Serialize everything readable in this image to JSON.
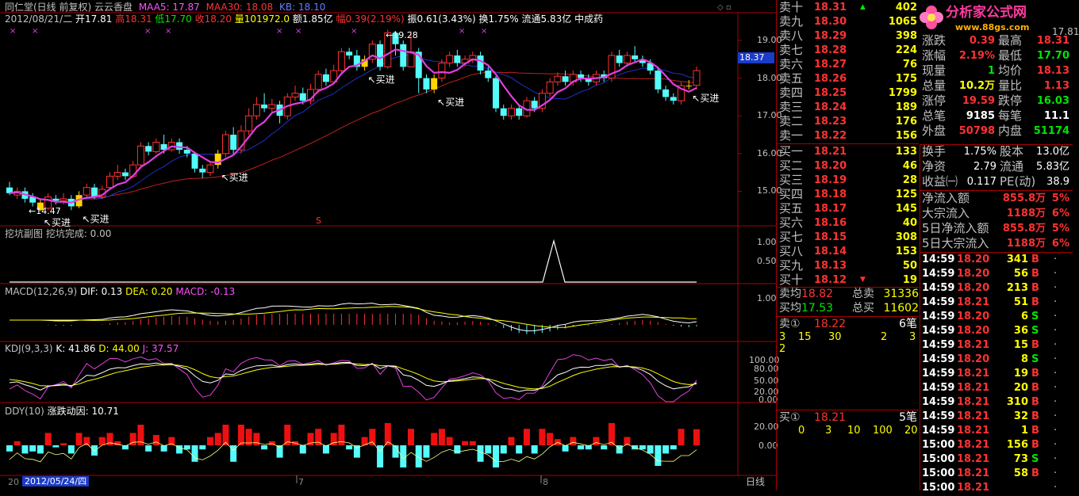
{
  "header": {
    "title": "同仁堂(日线 前复权) 云云香盘",
    "ma5_label": "MAA5: 17.87",
    "ma30_label": "MAA30: 18.08",
    "kb_label": "KB: 18.10",
    "date": "2012/08/21/二",
    "open": "开17.81",
    "high": "高18.31",
    "low": "低17.70",
    "close": "收18.20",
    "vol": "量101972.0",
    "amount": "额1.85亿",
    "change": "幅0.39(2.19%)",
    "amp": "振0.61(3.43%)",
    "turnover": "换1.75%",
    "float_cap": "流通5.83亿",
    "industry": "中成药"
  },
  "main_chart": {
    "price_ticks": [
      "19.00",
      "18.00",
      "17.00",
      "16.00",
      "15.00"
    ],
    "current_price_tag": "18.37",
    "high_mark": "19.28",
    "low_mark": "14.47",
    "buy_label": "买进",
    "s_mark": "S",
    "x_mark": "×",
    "candles": [
      [
        15.1,
        14.95,
        15.25,
        14.9
      ],
      [
        14.9,
        15.0,
        15.1,
        14.8
      ],
      [
        15.0,
        14.8,
        15.1,
        14.7
      ],
      [
        14.85,
        14.7,
        14.95,
        14.6
      ],
      [
        14.7,
        14.5,
        14.8,
        14.47
      ],
      [
        14.55,
        14.85,
        14.95,
        14.5
      ],
      [
        14.8,
        14.75,
        14.9,
        14.65
      ],
      [
        14.75,
        14.8,
        14.95,
        14.65
      ],
      [
        14.8,
        14.6,
        14.9,
        14.5
      ],
      [
        14.6,
        14.9,
        15.0,
        14.55
      ],
      [
        14.9,
        15.1,
        15.2,
        14.85
      ],
      [
        15.1,
        14.85,
        15.2,
        14.8
      ],
      [
        14.85,
        15.05,
        15.15,
        14.8
      ],
      [
        15.1,
        15.4,
        15.5,
        15.05
      ],
      [
        15.4,
        15.5,
        15.7,
        15.3
      ],
      [
        15.5,
        15.4,
        15.6,
        15.3
      ],
      [
        15.4,
        15.7,
        15.8,
        15.35
      ],
      [
        15.7,
        16.2,
        16.3,
        15.6
      ],
      [
        16.2,
        16.05,
        16.3,
        15.95
      ],
      [
        16.05,
        16.3,
        16.4,
        16.0
      ],
      [
        16.25,
        16.1,
        16.5,
        16.0
      ],
      [
        16.1,
        16.3,
        16.4,
        16.05
      ],
      [
        16.3,
        16.1,
        16.4,
        16.0
      ],
      [
        16.1,
        16.0,
        16.2,
        15.9
      ],
      [
        16.0,
        15.6,
        16.05,
        15.5
      ],
      [
        15.6,
        15.5,
        15.7,
        15.35
      ],
      [
        15.5,
        15.7,
        15.8,
        15.4
      ],
      [
        15.7,
        16.0,
        16.1,
        15.6
      ],
      [
        16.0,
        16.5,
        16.6,
        15.9
      ],
      [
        16.5,
        16.1,
        16.7,
        16.0
      ],
      [
        16.1,
        16.6,
        16.75,
        16.0
      ],
      [
        16.6,
        17.0,
        17.2,
        16.5
      ],
      [
        17.0,
        17.3,
        17.5,
        16.9
      ],
      [
        17.3,
        17.2,
        17.6,
        17.1
      ],
      [
        17.2,
        17.3,
        17.45,
        17.1
      ],
      [
        17.3,
        17.0,
        17.4,
        16.8
      ],
      [
        17.0,
        17.5,
        17.6,
        16.9
      ],
      [
        17.5,
        17.6,
        17.8,
        17.4
      ],
      [
        17.6,
        17.4,
        17.75,
        17.3
      ],
      [
        17.4,
        17.7,
        17.85,
        17.3
      ],
      [
        17.7,
        18.1,
        18.2,
        17.6
      ],
      [
        18.1,
        17.9,
        18.25,
        17.8
      ],
      [
        17.9,
        18.2,
        18.35,
        17.85
      ],
      [
        18.2,
        18.7,
        18.8,
        18.1
      ],
      [
        18.7,
        18.6,
        18.8,
        18.5
      ],
      [
        18.6,
        18.3,
        18.75,
        18.2
      ],
      [
        18.3,
        18.5,
        18.6,
        18.2
      ],
      [
        18.5,
        18.9,
        19.0,
        18.4
      ],
      [
        18.9,
        18.3,
        19.0,
        18.2
      ],
      [
        18.3,
        19.2,
        19.28,
        18.25
      ],
      [
        19.2,
        18.9,
        19.25,
        18.6
      ],
      [
        18.9,
        18.3,
        19.0,
        18.2
      ],
      [
        18.3,
        18.7,
        19.25,
        18.6
      ],
      [
        18.7,
        18.0,
        18.8,
        17.6
      ],
      [
        18.0,
        17.7,
        18.1,
        17.6
      ],
      [
        17.7,
        18.0,
        18.1,
        17.6
      ],
      [
        18.0,
        18.4,
        18.5,
        17.9
      ],
      [
        18.4,
        18.6,
        18.7,
        18.3
      ],
      [
        18.6,
        18.4,
        18.75,
        18.3
      ],
      [
        18.4,
        18.5,
        18.6,
        18.3
      ],
      [
        18.5,
        18.6,
        18.7,
        18.4
      ],
      [
        18.6,
        18.2,
        18.7,
        18.1
      ],
      [
        18.2,
        18.0,
        18.3,
        17.9
      ],
      [
        18.0,
        17.2,
        18.05,
        17.1
      ],
      [
        17.2,
        17.0,
        17.3,
        16.9
      ],
      [
        17.0,
        17.2,
        17.3,
        16.9
      ],
      [
        17.2,
        17.0,
        17.25,
        16.9
      ],
      [
        17.0,
        17.4,
        17.5,
        16.95
      ],
      [
        17.4,
        17.2,
        17.5,
        17.1
      ],
      [
        17.2,
        17.6,
        17.7,
        17.1
      ],
      [
        17.6,
        17.9,
        18.0,
        17.5
      ],
      [
        17.9,
        18.05,
        18.15,
        17.8
      ],
      [
        18.05,
        17.9,
        18.2,
        17.8
      ],
      [
        17.9,
        18.1,
        18.2,
        17.8
      ],
      [
        18.1,
        18.0,
        18.2,
        17.9
      ],
      [
        18.0,
        17.9,
        18.1,
        17.8
      ],
      [
        17.9,
        18.1,
        18.2,
        17.8
      ],
      [
        18.1,
        18.0,
        18.2,
        17.9
      ],
      [
        18.0,
        18.6,
        18.7,
        17.9
      ],
      [
        18.6,
        18.4,
        18.75,
        18.3
      ],
      [
        18.4,
        18.6,
        18.7,
        18.3
      ],
      [
        18.6,
        18.5,
        18.85,
        18.4
      ],
      [
        18.5,
        18.4,
        18.6,
        18.3
      ],
      [
        18.4,
        18.2,
        18.5,
        18.1
      ],
      [
        18.2,
        17.7,
        18.3,
        17.6
      ],
      [
        17.7,
        17.5,
        17.8,
        17.4
      ],
      [
        17.5,
        17.4,
        17.6,
        17.3
      ],
      [
        17.4,
        17.8,
        17.9,
        17.3
      ],
      [
        17.8,
        17.8,
        17.95,
        17.7
      ],
      [
        17.81,
        18.2,
        18.31,
        17.7
      ]
    ],
    "buy_indices": [
      4,
      9,
      27,
      46,
      55,
      88
    ]
  },
  "sub1": {
    "title": "挖坑副图 挖坑完成: 0.00",
    "ticks": [
      "1.00",
      "0.50"
    ]
  },
  "sub2": {
    "title": "MACD(12,26,9)",
    "dif": "DIF: 0.13",
    "dea": "DEA: 0.20",
    "macd": "MACD: -0.13",
    "ticks": [
      "1.00"
    ]
  },
  "sub3": {
    "title": "KDJ(9,3,3)",
    "k": "K: 41.86",
    "d": "D: 44.00",
    "j": "J: 37.57",
    "ticks": [
      "100.00",
      "80.00",
      "50.00",
      "20.00",
      "0.00"
    ]
  },
  "sub4": {
    "title": "DDY(10)",
    "value": "涨跌动因: 10.71",
    "ticks": [
      "20.00",
      "0.00"
    ]
  },
  "xaxis": {
    "label_left": "20",
    "date_hl": "2012/05/24/四",
    "m7": "7",
    "m8": "8",
    "period_tab": "日线"
  },
  "right_panel": {
    "logo_text": "分析家公式网",
    "logo_url": "www.88gs.com",
    "sells": [
      {
        "label": "卖十",
        "price": "18.31",
        "vol": "402"
      },
      {
        "label": "卖九",
        "price": "18.30",
        "vol": "1065"
      },
      {
        "label": "卖八",
        "price": "18.29",
        "vol": "398"
      },
      {
        "label": "卖七",
        "price": "18.28",
        "vol": "224"
      },
      {
        "label": "卖六",
        "price": "18.27",
        "vol": "76"
      },
      {
        "label": "卖五",
        "price": "18.26",
        "vol": "175"
      },
      {
        "label": "卖四",
        "price": "18.25",
        "vol": "1799"
      },
      {
        "label": "卖三",
        "price": "18.24",
        "vol": "189"
      },
      {
        "label": "卖二",
        "price": "18.23",
        "vol": "176"
      },
      {
        "label": "卖一",
        "price": "18.22",
        "vol": "156"
      }
    ],
    "buys": [
      {
        "label": "买一",
        "price": "18.21",
        "vol": "133"
      },
      {
        "label": "买二",
        "price": "18.20",
        "vol": "46"
      },
      {
        "label": "买三",
        "price": "18.19",
        "vol": "28"
      },
      {
        "label": "买四",
        "price": "18.18",
        "vol": "125"
      },
      {
        "label": "买五",
        "price": "18.17",
        "vol": "145"
      },
      {
        "label": "买六",
        "price": "18.16",
        "vol": "40"
      },
      {
        "label": "买七",
        "price": "18.15",
        "vol": "308"
      },
      {
        "label": "买八",
        "price": "18.14",
        "vol": "153"
      },
      {
        "label": "买九",
        "price": "18.13",
        "vol": "50"
      },
      {
        "label": "买十",
        "price": "18.12",
        "vol": "19"
      }
    ],
    "avg": {
      "sell_avg_label": "卖均",
      "sell_avg": "18.82",
      "total_sell_label": "总卖",
      "total_sell": "31336",
      "buy_avg_label": "买均",
      "buy_avg": "17.53",
      "total_buy_label": "总买",
      "total_buy": "11602"
    },
    "sell1": {
      "label": "卖①",
      "price": "18.22",
      "count": "6笔",
      "orders": [
        "3",
        "15",
        "30",
        "2",
        "3"
      ],
      "extra": "2"
    },
    "buy1": {
      "label": "买①",
      "price": "18.21",
      "count": "5笔",
      "orders": [
        "0",
        "3",
        "10",
        "100",
        "20"
      ]
    },
    "stats": [
      {
        "l1": "涨跌",
        "v1": "0.39",
        "c1": "red",
        "l2": "最高",
        "v2": "18.31",
        "c2": "red"
      },
      {
        "l1": "涨幅",
        "v1": "2.19%",
        "c1": "red",
        "l2": "最低",
        "v2": "17.70",
        "c2": "green"
      },
      {
        "l1": "现量",
        "v1": "1",
        "c1": "green",
        "l2": "均价",
        "v2": "18.13",
        "c2": "red"
      },
      {
        "l1": "总量",
        "v1": "10.2万",
        "c1": "yellow",
        "l2": "量比",
        "v2": "1.13",
        "c2": "red"
      },
      {
        "l1": "涨停",
        "v1": "19.59",
        "c1": "red",
        "l2": "跌停",
        "v2": "16.03",
        "c2": "green"
      },
      {
        "l1": "总笔",
        "v1": "9185",
        "c1": "white",
        "l2": "每笔",
        "v2": "11.1",
        "c2": "white"
      },
      {
        "l1": "外盘",
        "v1": "50798",
        "c1": "red",
        "l2": "内盘",
        "v2": "51174",
        "c2": "green"
      }
    ],
    "top_right": "17.81",
    "fin": [
      {
        "l1": "换手",
        "v1": "1.75%",
        "l2": "股本",
        "v2": "13.0亿"
      },
      {
        "l1": "净资",
        "v1": "2.79",
        "l2": "流通",
        "v2": "5.83亿"
      },
      {
        "l1": "收益㈠",
        "v1": "0.117",
        "l2": "PE(动)",
        "v2": "38.9"
      }
    ],
    "flows": [
      {
        "label": "净流入额",
        "val": "855.8万",
        "pct": "5%"
      },
      {
        "label": "大宗流入",
        "val": "1188万",
        "pct": "6%"
      },
      {
        "label": "5日净流入额",
        "val": "855.8万",
        "pct": "5%"
      },
      {
        "label": "5日大宗流入",
        "val": "1188万",
        "pct": "6%"
      }
    ],
    "ticks": [
      {
        "t": "14:59",
        "p": "18.20",
        "v": "341",
        "s": "B",
        "c": "red"
      },
      {
        "t": "14:59",
        "p": "18.20",
        "v": "56",
        "s": "B",
        "c": "red"
      },
      {
        "t": "14:59",
        "p": "18.20",
        "v": "213",
        "s": "B",
        "c": "red"
      },
      {
        "t": "14:59",
        "p": "18.21",
        "v": "51",
        "s": "B",
        "c": "red"
      },
      {
        "t": "14:59",
        "p": "18.20",
        "v": "6",
        "s": "S",
        "c": "green"
      },
      {
        "t": "14:59",
        "p": "18.20",
        "v": "36",
        "s": "S",
        "c": "green"
      },
      {
        "t": "14:59",
        "p": "18.21",
        "v": "15",
        "s": "B",
        "c": "red"
      },
      {
        "t": "14:59",
        "p": "18.20",
        "v": "8",
        "s": "S",
        "c": "green"
      },
      {
        "t": "14:59",
        "p": "18.21",
        "v": "19",
        "s": "B",
        "c": "red"
      },
      {
        "t": "14:59",
        "p": "18.21",
        "v": "20",
        "s": "B",
        "c": "red"
      },
      {
        "t": "14:59",
        "p": "18.21",
        "v": "310",
        "s": "B",
        "c": "red"
      },
      {
        "t": "14:59",
        "p": "18.21",
        "v": "32",
        "s": "B",
        "c": "red"
      },
      {
        "t": "14:59",
        "p": "18.21",
        "v": "1",
        "s": "B",
        "c": "red"
      },
      {
        "t": "15:00",
        "p": "18.21",
        "v": "156",
        "s": "B",
        "c": "red"
      },
      {
        "t": "15:00",
        "p": "18.21",
        "v": "73",
        "s": "S",
        "c": "green"
      },
      {
        "t": "15:00",
        "p": "18.21",
        "v": "58",
        "s": "B",
        "c": "red"
      },
      {
        "t": "15:00",
        "p": "18.21",
        "v": "",
        "s": "",
        "c": "red"
      }
    ]
  }
}
